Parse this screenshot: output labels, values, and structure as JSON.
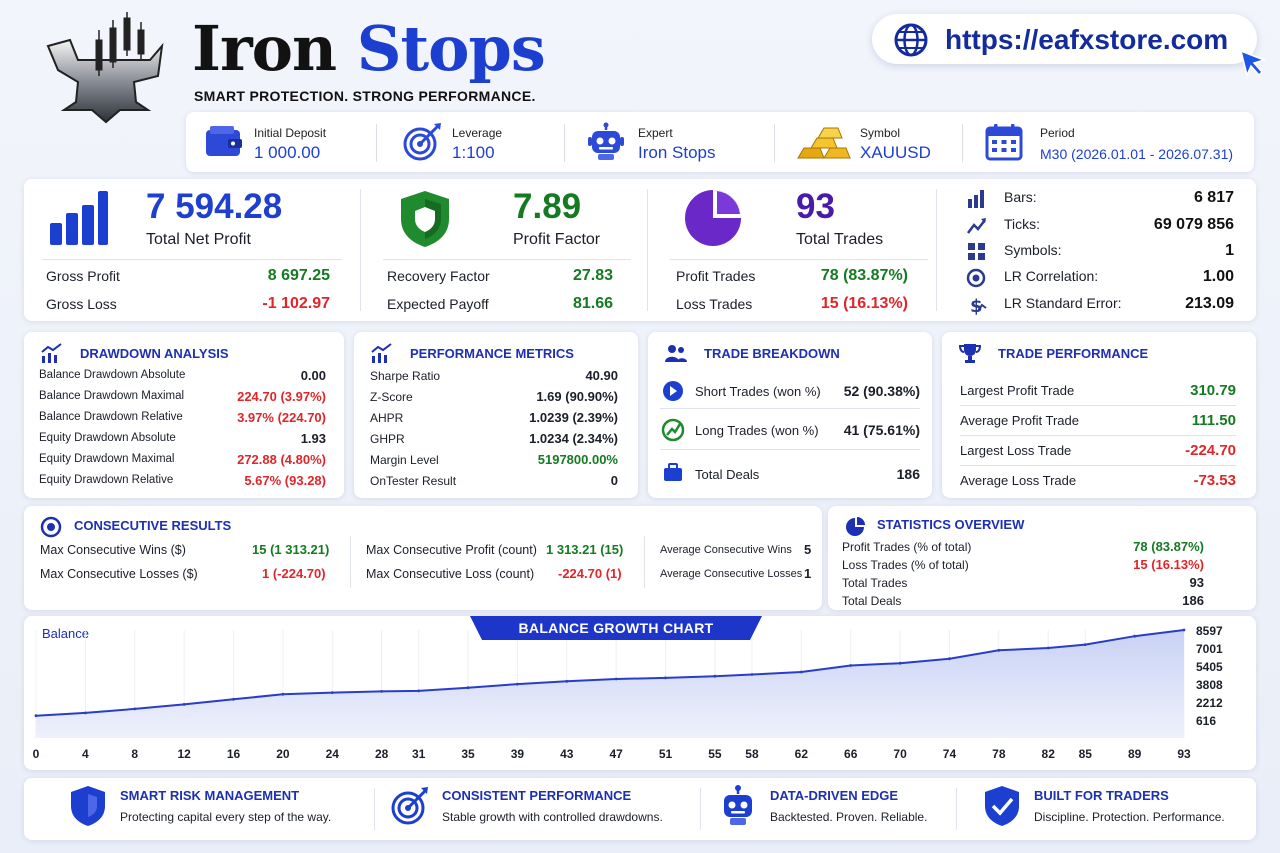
{
  "header": {
    "brand_word1": "Iron",
    "brand_word2": "Stops",
    "tagline": "SMART PROTECTION. STRONG PERFORMANCE.",
    "url": "https://eafxstore.com"
  },
  "info_bar": [
    {
      "label": "Initial Deposit",
      "value": "1 000.00",
      "icon": "wallet-icon"
    },
    {
      "label": "Leverage",
      "value": "1:100",
      "icon": "target-icon"
    },
    {
      "label": "Expert",
      "value": "Iron Stops",
      "icon": "robot-icon"
    },
    {
      "label": "Symbol",
      "value": "XAUUSD",
      "icon": "gold-bars-icon"
    },
    {
      "label": "Period",
      "value": "M30 (2026.01.01 - 2026.07.31)",
      "icon": "calendar-icon"
    }
  ],
  "summary": {
    "net_profit": {
      "value": "7 594.28",
      "label": "Total Net Profit"
    },
    "gross_profit": {
      "label": "Gross Profit",
      "value": "8 697.25"
    },
    "gross_loss": {
      "label": "Gross Loss",
      "value": "-1 102.97"
    },
    "profit_factor": {
      "value": "7.89",
      "label": "Profit Factor"
    },
    "recovery_factor": {
      "label": "Recovery Factor",
      "value": "27.83"
    },
    "expected_payoff": {
      "label": "Expected Payoff",
      "value": "81.66"
    },
    "total_trades": {
      "value": "93",
      "label": "Total Trades"
    },
    "profit_trades": {
      "label": "Profit Trades",
      "value": "78 (83.87%)"
    },
    "loss_trades": {
      "label": "Loss Trades",
      "value": "15 (16.13%)"
    },
    "stats": [
      {
        "label": "Bars:",
        "value": "6 817",
        "icon": "bars-icon"
      },
      {
        "label": "Ticks:",
        "value": "69 079 856",
        "icon": "ticks-icon"
      },
      {
        "label": "Symbols:",
        "value": "1",
        "icon": "symbols-icon"
      },
      {
        "label": "LR Correlation:",
        "value": "1.00",
        "icon": "correlation-icon"
      },
      {
        "label": "LR Standard Error:",
        "value": "213.09",
        "icon": "std-error-icon"
      }
    ]
  },
  "drawdown": {
    "title": "DRAWDOWN ANALYSIS",
    "rows": [
      {
        "label": "Balance Drawdown Absolute",
        "value": "0.00",
        "tone": "dark"
      },
      {
        "label": "Balance Drawdown Maximal",
        "value": "224.70 (3.97%)",
        "tone": "red"
      },
      {
        "label": "Balance Drawdown Relative",
        "value": "3.97% (224.70)",
        "tone": "red"
      },
      {
        "label": "Equity Drawdown Absolute",
        "value": "1.93",
        "tone": "dark"
      },
      {
        "label": "Equity Drawdown Maximal",
        "value": "272.88 (4.80%)",
        "tone": "red"
      },
      {
        "label": "Equity Drawdown Relative",
        "value": "5.67% (93.28)",
        "tone": "red"
      }
    ]
  },
  "performance": {
    "title": "PERFORMANCE METRICS",
    "rows": [
      {
        "label": "Sharpe Ratio",
        "value": "40.90",
        "tone": "dark"
      },
      {
        "label": "Z-Score",
        "value": "1.69 (90.90%)",
        "tone": "dark"
      },
      {
        "label": "AHPR",
        "value": "1.0239 (2.39%)",
        "tone": "dark"
      },
      {
        "label": "GHPR",
        "value": "1.0234 (2.34%)",
        "tone": "dark"
      },
      {
        "label": "Margin Level",
        "value": "5197800.00%",
        "tone": "green"
      },
      {
        "label": "OnTester Result",
        "value": "0",
        "tone": "dark"
      }
    ]
  },
  "trade_breakdown": {
    "title": "TRADE BREAKDOWN",
    "short_label": "Short Trades (won %)",
    "short_value": "52 (90.38%)",
    "long_label": "Long Trades (won %)",
    "long_value": "41 (75.61%)",
    "deals_label": "Total Deals",
    "deals_value": "186"
  },
  "trade_performance": {
    "title": "TRADE PERFORMANCE",
    "rows": [
      {
        "label": "Largest Profit Trade",
        "value": "310.79",
        "tone": "green"
      },
      {
        "label": "Average Profit Trade",
        "value": "111.50",
        "tone": "green"
      },
      {
        "label": "Largest Loss Trade",
        "value": "-224.70",
        "tone": "red"
      },
      {
        "label": "Average Loss Trade",
        "value": "-73.53",
        "tone": "red"
      }
    ]
  },
  "consecutive": {
    "title": "CONSECUTIVE RESULTS",
    "max_wins_label": "Max Consecutive Wins ($)",
    "max_wins_value": "15 (1 313.21)",
    "max_losses_label": "Max Consecutive Losses ($)",
    "max_losses_value": "1 (-224.70)",
    "max_profit_label": "Max Consecutive Profit (count)",
    "max_profit_value": "1 313.21 (15)",
    "max_loss_label": "Max Consecutive Loss (count)",
    "max_loss_value": "-224.70 (1)",
    "avg_wins_label": "Average Consecutive Wins",
    "avg_wins_value": "5",
    "avg_losses_label": "Average Consecutive Losses",
    "avg_losses_value": "1"
  },
  "statistics_overview": {
    "title": "STATISTICS OVERVIEW",
    "rows": [
      {
        "label": "Profit Trades (% of total)",
        "value": "78 (83.87%)",
        "tone": "green"
      },
      {
        "label": "Loss Trades (% of total)",
        "value": "15 (16.13%)",
        "tone": "red"
      },
      {
        "label": "Total Trades",
        "value": "93",
        "tone": "dark"
      },
      {
        "label": "Total Deals",
        "value": "186",
        "tone": "dark"
      }
    ]
  },
  "chart_data": {
    "type": "area",
    "title": "BALANCE GROWTH CHART",
    "series_label": "Balance",
    "x_ticks": [
      "0",
      "4",
      "8",
      "12",
      "16",
      "20",
      "24",
      "28",
      "31",
      "35",
      "39",
      "43",
      "47",
      "51",
      "55",
      "58",
      "62",
      "66",
      "70",
      "74",
      "78",
      "82",
      "85",
      "89",
      "93"
    ],
    "y_ticks": [
      "8597",
      "7001",
      "5405",
      "3808",
      "2212",
      "616"
    ],
    "xlim": [
      0,
      93
    ],
    "ylim": [
      -980,
      8597
    ],
    "x": [
      0,
      4,
      8,
      12,
      16,
      20,
      24,
      28,
      31,
      35,
      39,
      43,
      47,
      51,
      55,
      58,
      62,
      66,
      70,
      74,
      78,
      82,
      85,
      89,
      93
    ],
    "y": [
      1000,
      1250,
      1600,
      2000,
      2450,
      2900,
      3050,
      3150,
      3200,
      3480,
      3800,
      4050,
      4250,
      4350,
      4500,
      4650,
      4870,
      5450,
      5650,
      6050,
      6800,
      7000,
      7300,
      8050,
      8597
    ]
  },
  "footer": [
    {
      "title": "SMART RISK MANAGEMENT",
      "sub": "Protecting capital every step of the way.",
      "icon": "shield-icon"
    },
    {
      "title": "CONSISTENT PERFORMANCE",
      "sub": "Stable growth with controlled drawdowns.",
      "icon": "target-icon"
    },
    {
      "title": "DATA-DRIVEN EDGE",
      "sub": "Backtested. Proven. Reliable.",
      "icon": "robot-icon"
    },
    {
      "title": "BUILT FOR TRADERS",
      "sub": "Discipline. Protection. Performance.",
      "icon": "check-shield-icon"
    }
  ],
  "colors": {
    "accent": "#1d3fd0",
    "positive": "#157a22",
    "negative": "#e0262a",
    "chart_line": "#2a3dc8"
  }
}
